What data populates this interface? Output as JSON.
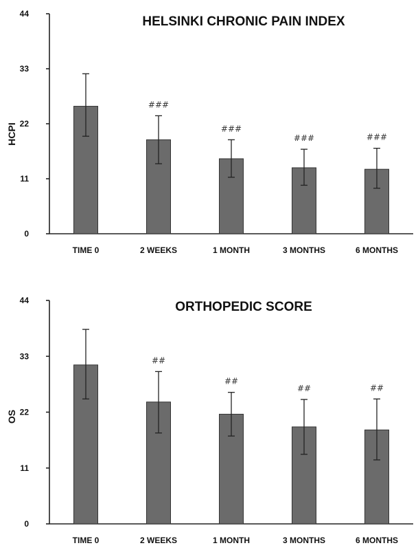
{
  "colors": {
    "bar": "#6b6b6b",
    "bar_border": "#333333",
    "axis": "#222222",
    "text": "#111111"
  },
  "chart_data": [
    {
      "type": "bar",
      "title": "HELSINKI CHRONIC PAIN INDEX",
      "xlabel": "",
      "ylabel": "HCPI",
      "ylim": [
        0,
        44
      ],
      "yticks": [
        0,
        11,
        22,
        33,
        44
      ],
      "categories": [
        "TIME 0",
        "2 WEEKS",
        "1 MONTH",
        "3 MONTHS",
        "6 MONTHS"
      ],
      "values": [
        25.5,
        18.8,
        15.0,
        13.2,
        12.9
      ],
      "error_low": [
        19.5,
        14.0,
        11.3,
        9.7,
        9.1
      ],
      "error_high": [
        32.0,
        23.6,
        18.8,
        16.9,
        17.1
      ],
      "annotations": [
        "",
        "###",
        "###",
        "###",
        "###"
      ],
      "grid": false
    },
    {
      "type": "bar",
      "title": "ORTHOPEDIC SCORE",
      "xlabel": "",
      "ylabel": "OS",
      "ylim": [
        0,
        44
      ],
      "yticks": [
        0,
        11,
        22,
        33,
        44
      ],
      "categories": [
        "TIME 0",
        "2 WEEKS",
        "1 MONTH",
        "3 MONTHS",
        "6 MONTHS"
      ],
      "values": [
        31.3,
        24.0,
        21.6,
        19.1,
        18.5
      ],
      "error_low": [
        24.6,
        17.9,
        17.3,
        13.7,
        12.6
      ],
      "error_high": [
        38.3,
        30.0,
        25.9,
        24.5,
        24.6
      ],
      "annotations": [
        "",
        "##",
        "##",
        "##",
        "##"
      ],
      "grid": false
    }
  ]
}
